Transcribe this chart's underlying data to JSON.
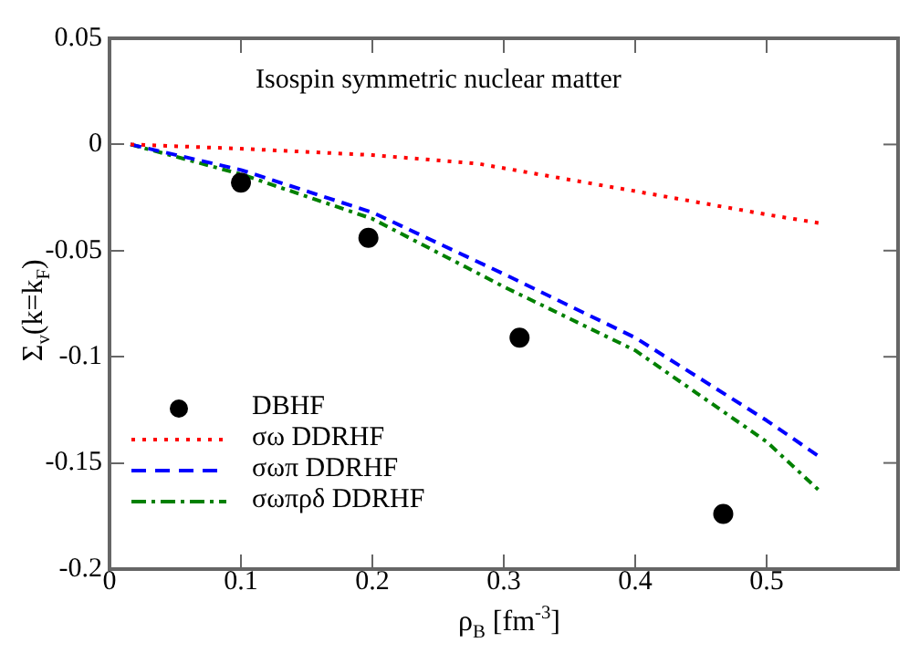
{
  "chart_data": {
    "type": "line",
    "title": "Isospin symmetric nuclear matter",
    "xlabel": "ρ$_{B}$ [fm$^{-3}$]",
    "ylabel": "Σ$_{v}$(k=k$_{F}$)",
    "xlim": [
      0,
      0.6
    ],
    "xticks": [
      0,
      0.1,
      0.2,
      0.3,
      0.4,
      0.5
    ],
    "ylim": [
      -0.2,
      0.05
    ],
    "yticks": [
      -0.2,
      -0.15,
      -0.1,
      -0.05,
      0,
      0.05
    ],
    "grid": false,
    "legend": "bottom left",
    "series": [
      {
        "name": "DBHF",
        "type": "scatter",
        "marker": "circle",
        "color": "#000000",
        "x": [
          0.1,
          0.197,
          0.312,
          0.467
        ],
        "values": [
          -0.018,
          -0.044,
          -0.091,
          -0.174
        ]
      },
      {
        "name": "σω DDRHF",
        "line_style": "dotted",
        "marker": "none",
        "color": "#ff0000",
        "x": [
          0.016,
          0.1,
          0.2,
          0.28,
          0.4,
          0.5,
          0.54
        ],
        "values": [
          0,
          -0.002,
          -0.005,
          -0.009,
          -0.022,
          -0.033,
          -0.037
        ]
      },
      {
        "name": "σωπ DDRHF",
        "line_style": "dashed",
        "marker": "none",
        "color": "#0000ff",
        "x": [
          0.016,
          0.1,
          0.2,
          0.3,
          0.4,
          0.5,
          0.54
        ],
        "values": [
          0,
          -0.012,
          -0.032,
          -0.061,
          -0.091,
          -0.13,
          -0.147
        ]
      },
      {
        "name": "σωπρδ DDRHF",
        "line_style": "dashdot",
        "marker": "none",
        "color": "#008000",
        "x": [
          0.016,
          0.1,
          0.2,
          0.3,
          0.4,
          0.5,
          0.54
        ],
        "values": [
          0,
          -0.014,
          -0.035,
          -0.067,
          -0.097,
          -0.14,
          -0.163
        ]
      }
    ]
  }
}
